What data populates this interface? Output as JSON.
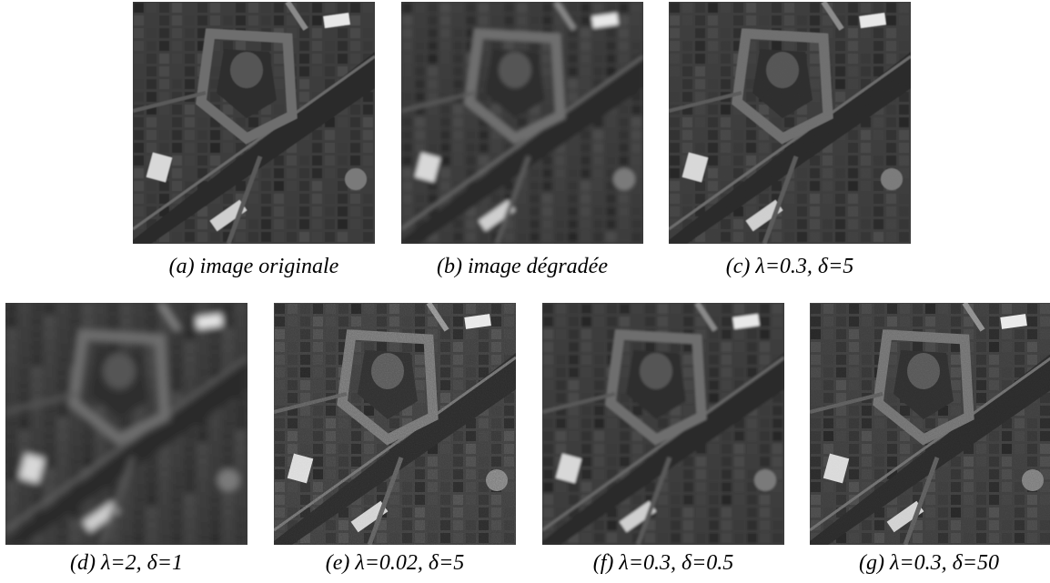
{
  "figure": {
    "panels": [
      {
        "id": "a",
        "caption": "(a) image originale",
        "blur": 0.4,
        "noise": 0.0
      },
      {
        "id": "b",
        "caption": "(b) image dégradée",
        "blur": 2.2,
        "noise": 0.0
      },
      {
        "id": "c",
        "caption": "(c) λ=0.3, δ=5",
        "blur": 0.6,
        "noise": 0.1
      },
      {
        "id": "d",
        "caption": "(d) λ=2, δ=1",
        "blur": 4.0,
        "noise": 0.0
      },
      {
        "id": "e",
        "caption": "(e) λ=0.02, δ=5",
        "blur": 0.3,
        "noise": 0.9
      },
      {
        "id": "f",
        "caption": "(f) λ=0.3, δ=0.5",
        "blur": 1.2,
        "noise": 0.0
      },
      {
        "id": "g",
        "caption": "(g) λ=0.3, δ=50",
        "blur": 0.3,
        "noise": 0.55
      }
    ]
  }
}
